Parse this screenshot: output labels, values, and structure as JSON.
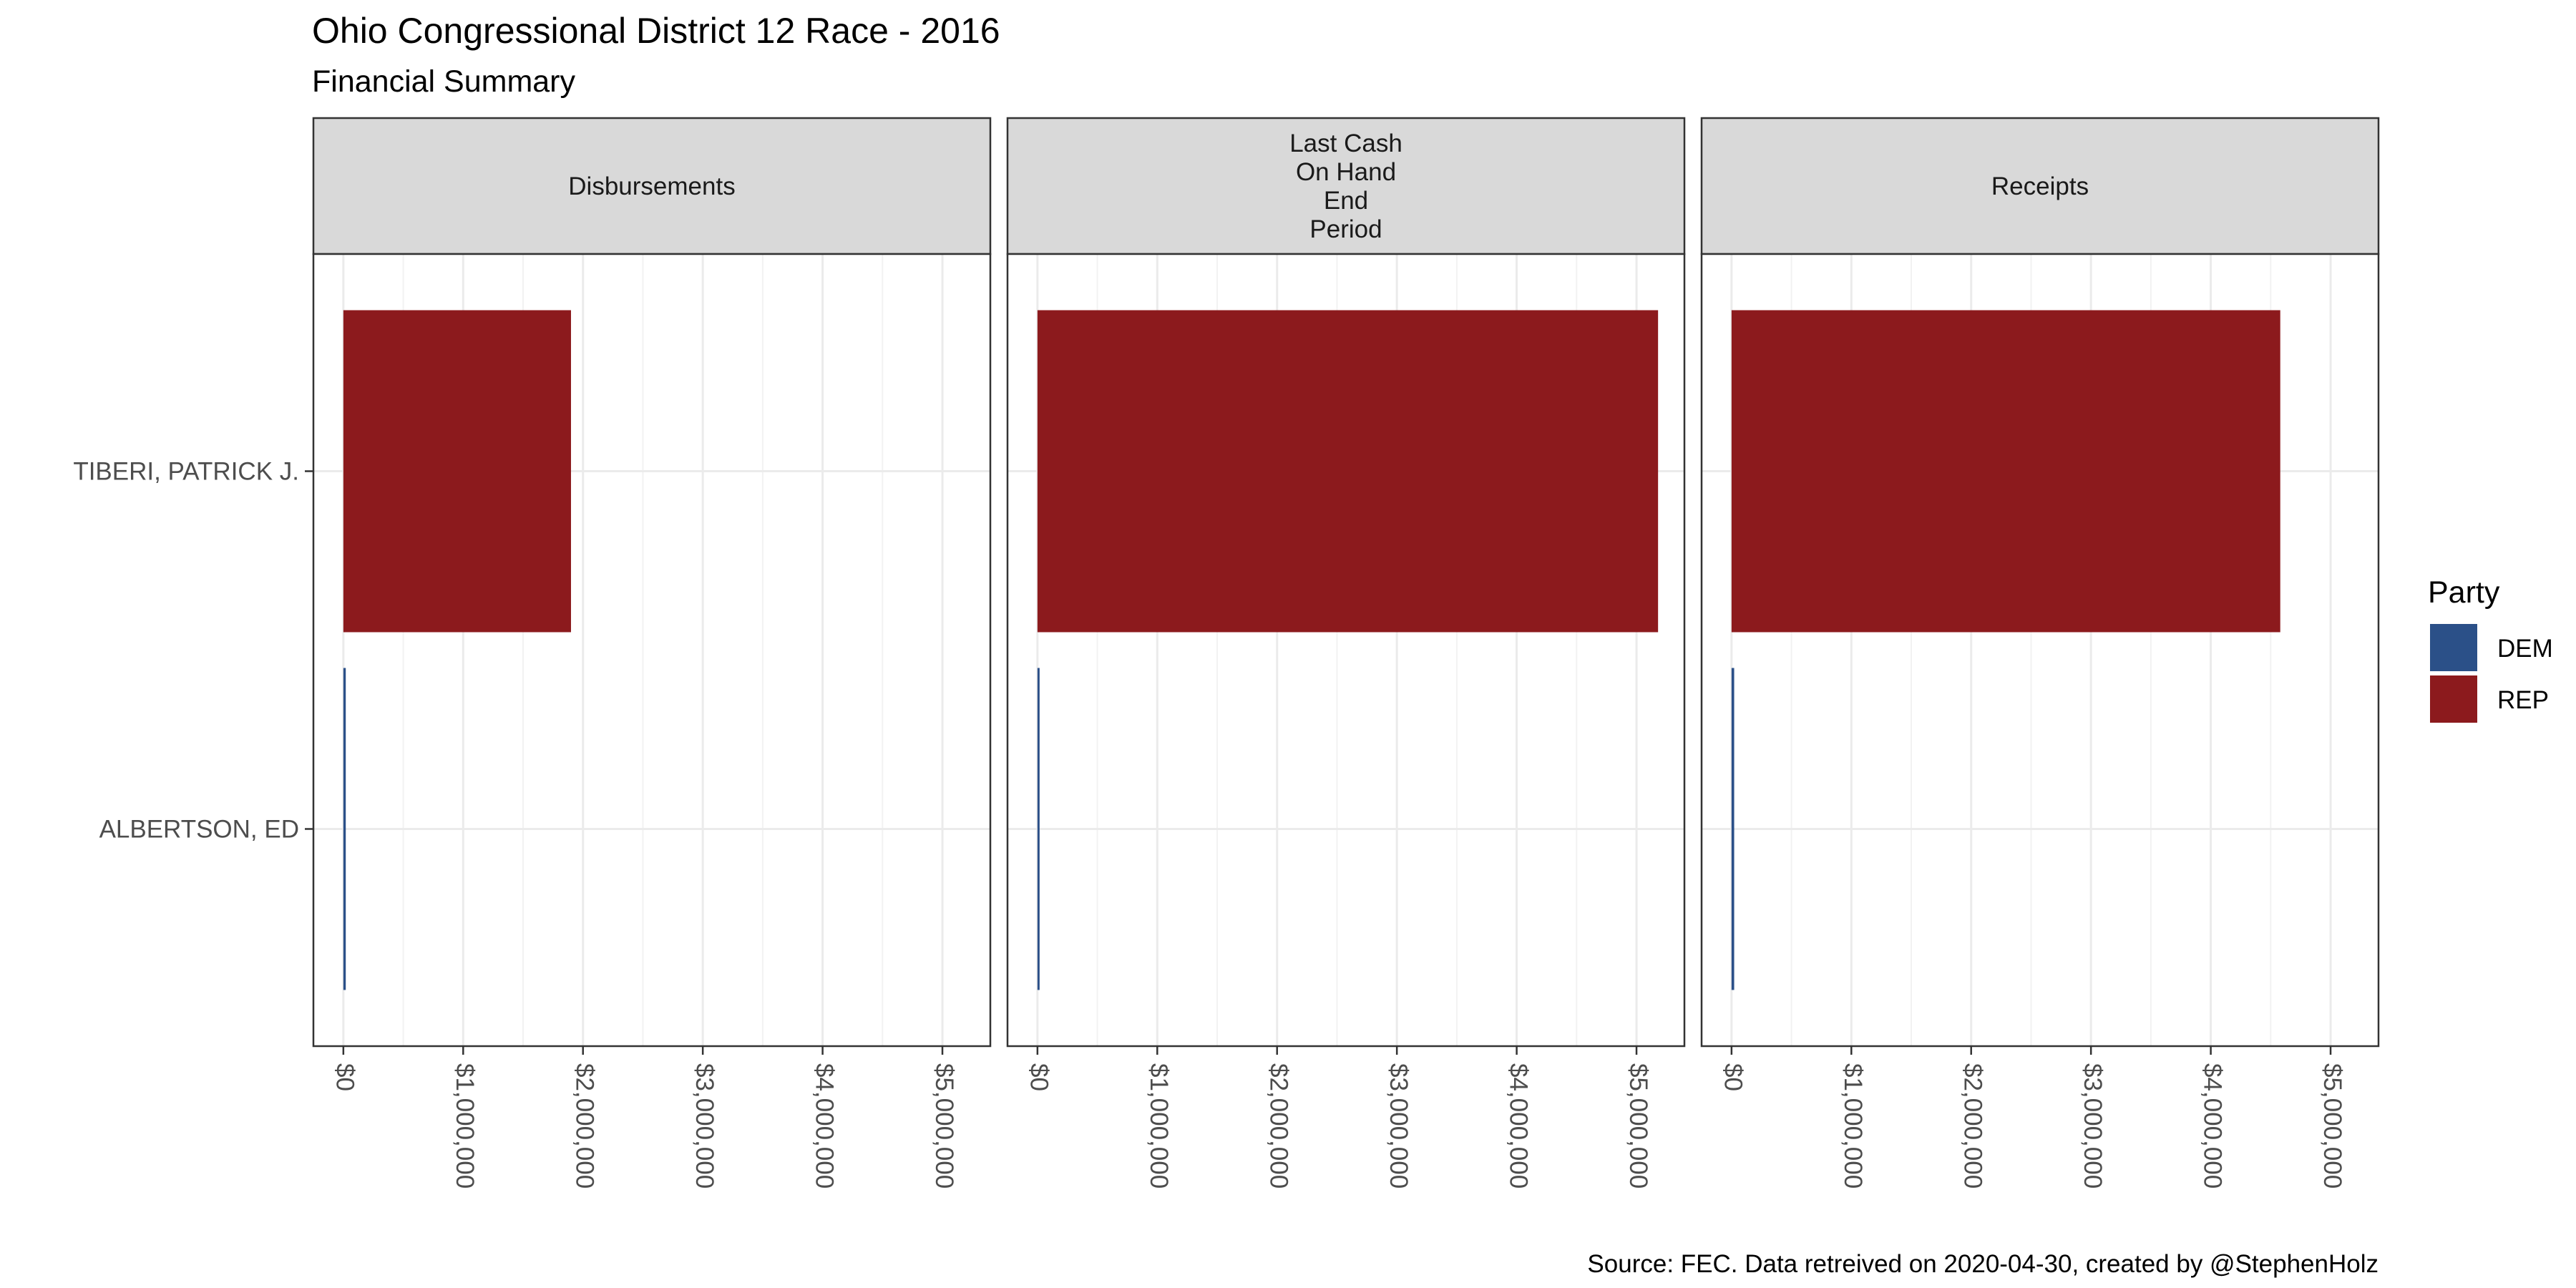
{
  "chart_data": {
    "type": "bar",
    "orientation": "horizontal",
    "title": "Ohio Congressional District 12 Race - 2016",
    "subtitle": "Financial Summary",
    "caption": "Source: FEC. Data retreived on 2020-04-30, created by @StephenHolz",
    "categories": [
      "ALBERTSON, ED",
      "TIBERI, PATRICK J."
    ],
    "category_party": [
      "DEM",
      "REP"
    ],
    "xlim": [
      -250000,
      5400000
    ],
    "x_ticks": [
      0,
      1000000,
      2000000,
      3000000,
      4000000,
      5000000
    ],
    "x_tick_labels": [
      "$0",
      "$1,000,000",
      "$2,000,000",
      "$3,000,000",
      "$4,000,000",
      "$5,000,000"
    ],
    "grid": true,
    "facets": [
      {
        "strip_lines": [
          "Disbursements"
        ],
        "values": {
          "ALBERTSON, ED": 20000,
          "TIBERI, PATRICK J.": 1900000
        }
      },
      {
        "strip_lines": [
          "Last Cash",
          "On Hand",
          "End",
          "Period"
        ],
        "values": {
          "ALBERTSON, ED": 1000,
          "TIBERI, PATRICK J.": 5180000
        }
      },
      {
        "strip_lines": [
          "Receipts"
        ],
        "values": {
          "ALBERTSON, ED": 22000,
          "TIBERI, PATRICK J.": 4580000
        }
      }
    ],
    "legend": {
      "title": "Party",
      "position": "right",
      "items": [
        {
          "label": "DEM",
          "color": "#2b5088"
        },
        {
          "label": "REP",
          "color": "#8c1a1d"
        }
      ]
    }
  }
}
